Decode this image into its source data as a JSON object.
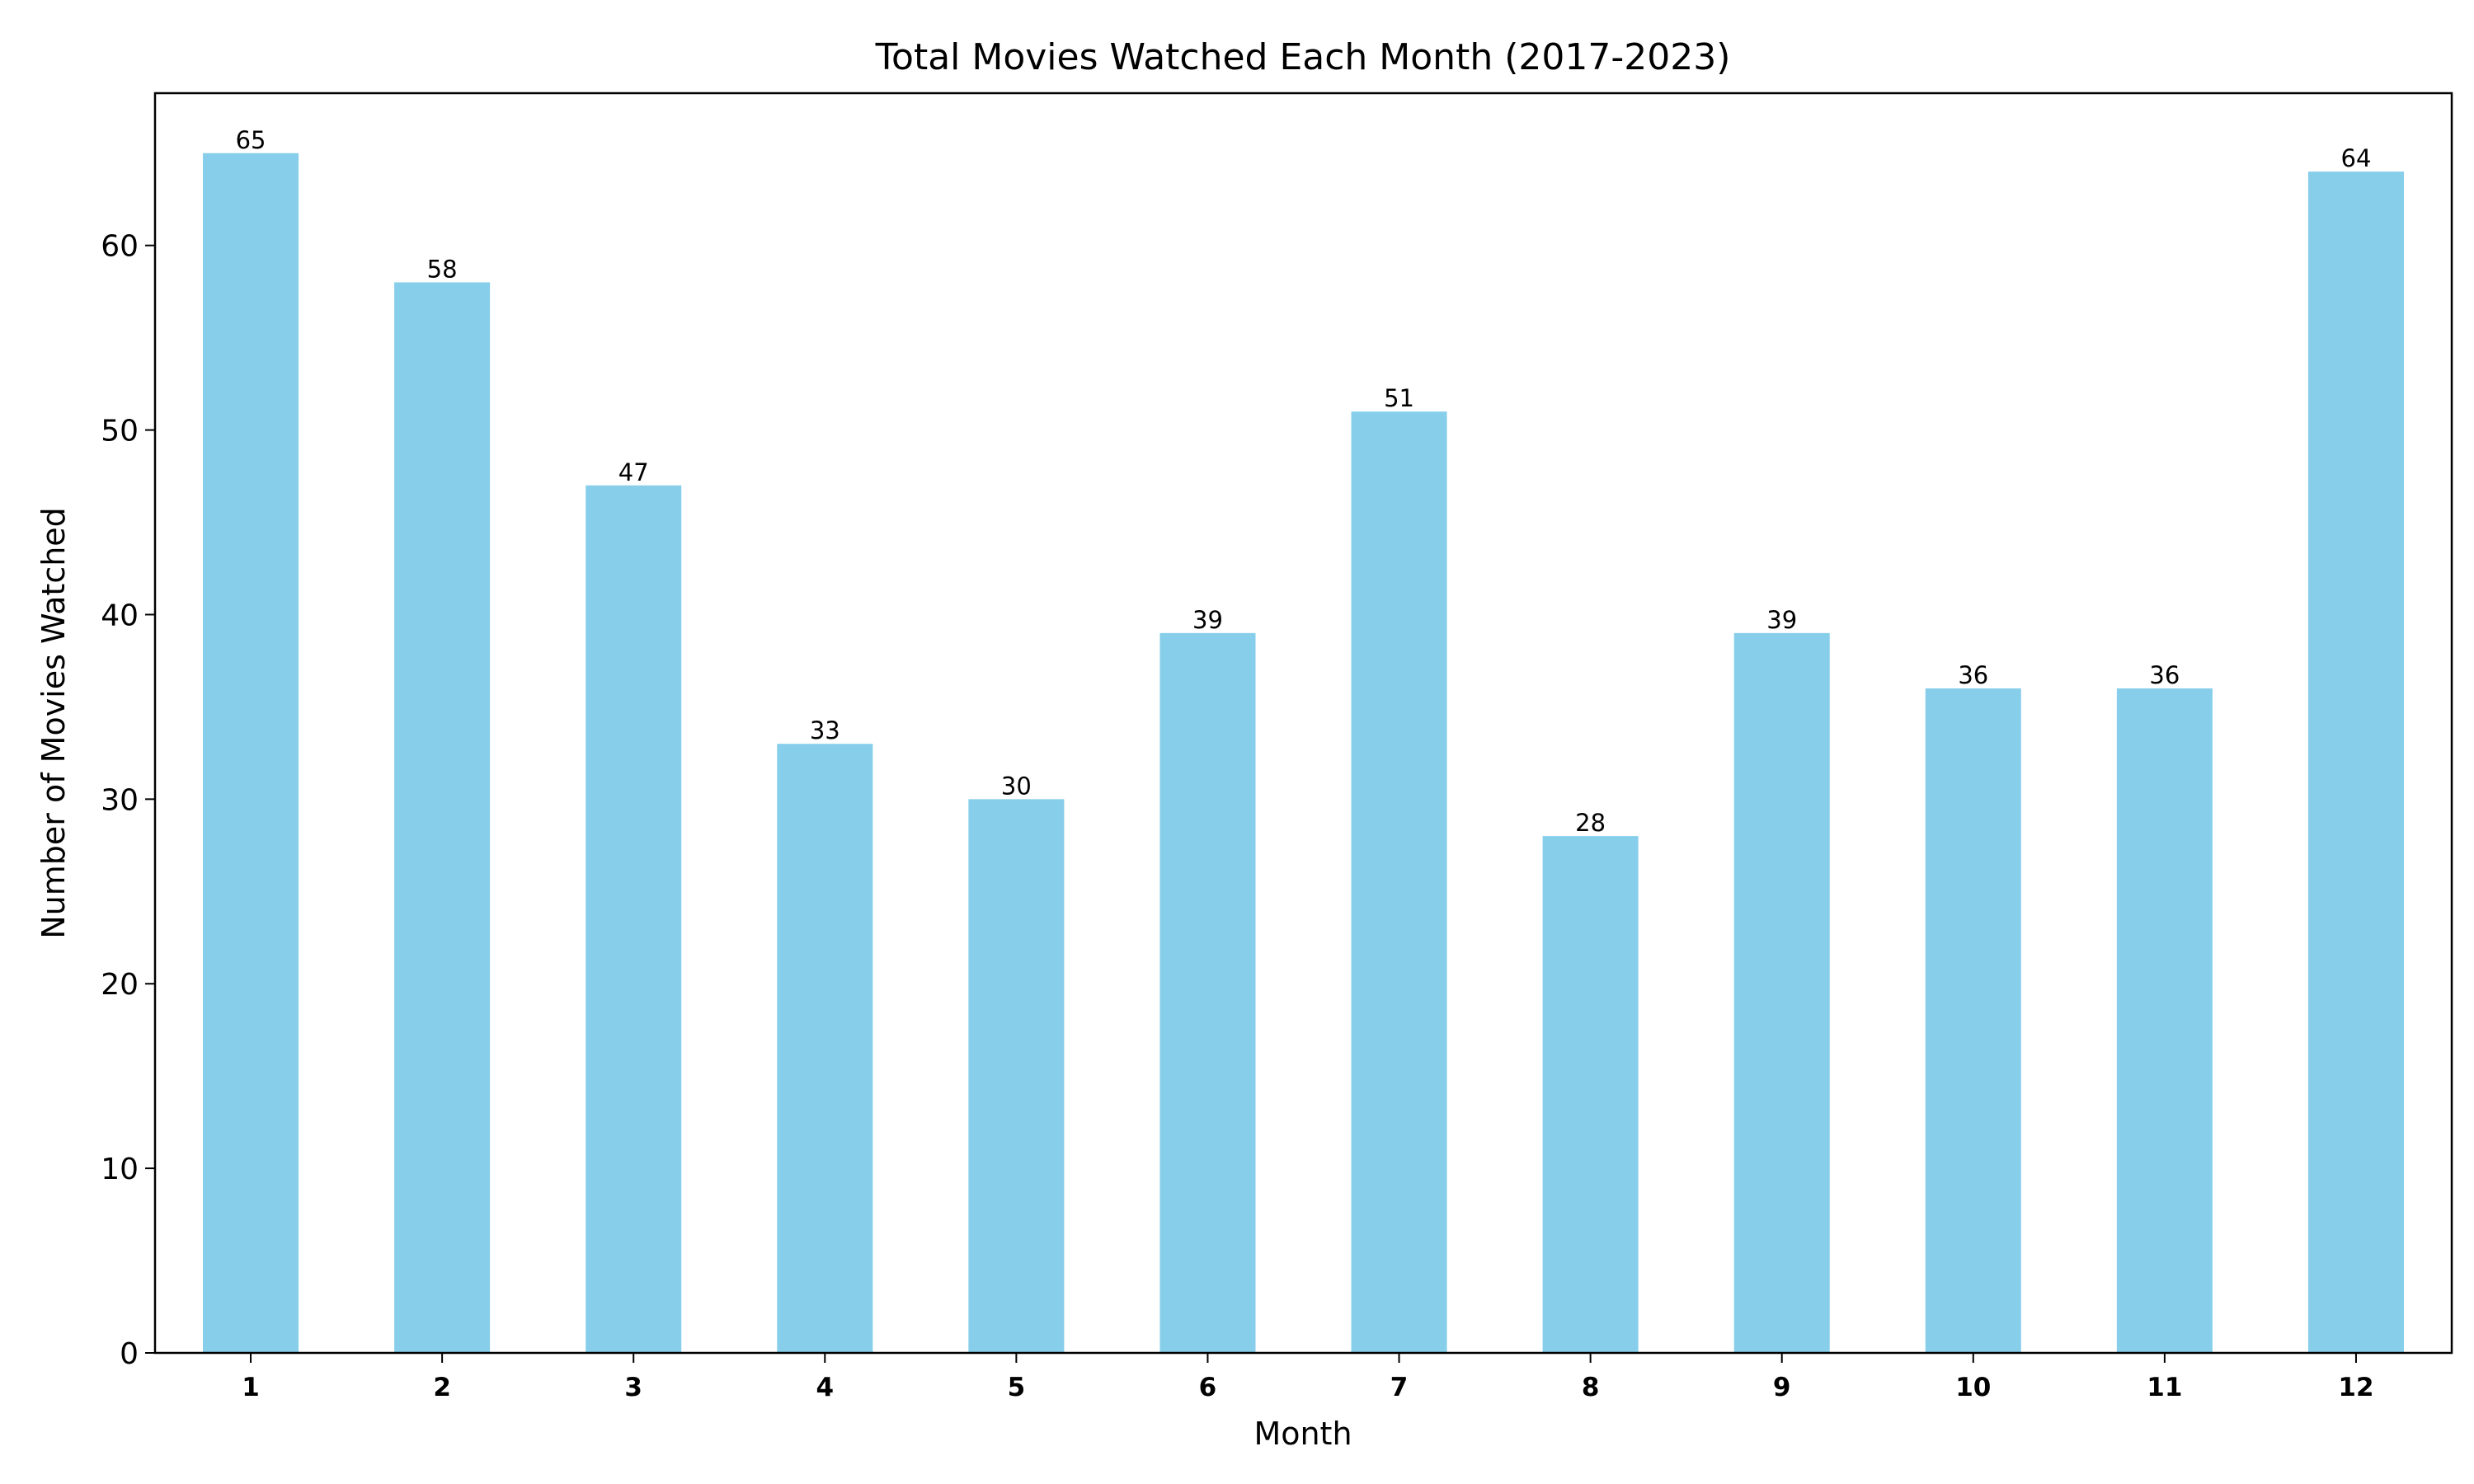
{
  "chart_data": {
    "type": "bar",
    "title": "Total Movies Watched Each Month (2017-2023)",
    "xlabel": "Month",
    "ylabel": "Number of Movies Watched",
    "categories": [
      "1",
      "2",
      "3",
      "4",
      "5",
      "6",
      "7",
      "8",
      "9",
      "10",
      "11",
      "12"
    ],
    "values": [
      65,
      58,
      47,
      33,
      30,
      39,
      51,
      28,
      39,
      36,
      36,
      64
    ],
    "ylim": [
      0,
      68.25
    ],
    "yticks": [
      "0",
      "10",
      "20",
      "30",
      "40",
      "50",
      "60"
    ],
    "bar_color": "#87CEEB",
    "grid": false,
    "legend": "none"
  }
}
